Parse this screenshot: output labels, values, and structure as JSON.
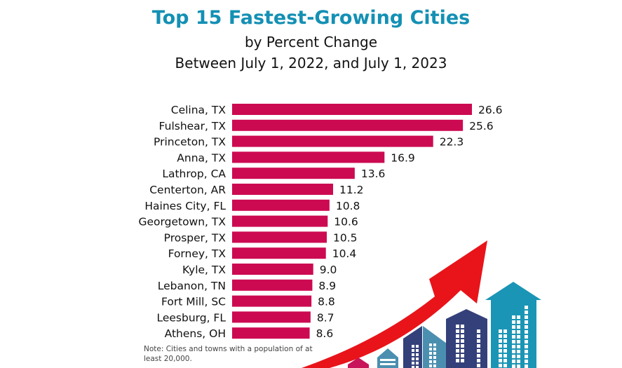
{
  "chart_data": {
    "type": "bar",
    "orientation": "horizontal",
    "title": "Top 15 Fastest-Growing Cities",
    "subtitle_lines": [
      "by Percent Change",
      "Between July 1, 2022, and July 1, 2023"
    ],
    "xlabel": "",
    "ylabel": "",
    "categories": [
      "Celina, TX",
      "Fulshear, TX",
      "Princeton, TX",
      "Anna, TX",
      "Lathrop, CA",
      "Centerton, AR",
      "Haines City, FL",
      "Georgetown, TX",
      "Prosper, TX",
      "Forney, TX",
      "Kyle, TX",
      "Lebanon, TN",
      "Fort Mill, SC",
      "Leesburg, FL",
      "Athens, OH"
    ],
    "values": [
      26.6,
      25.6,
      22.3,
      16.9,
      13.6,
      11.2,
      10.8,
      10.6,
      10.5,
      10.4,
      9.0,
      8.9,
      8.8,
      8.7,
      8.6
    ],
    "value_labels": [
      "26.6",
      "25.6",
      "22.3",
      "16.9",
      "13.6",
      "11.2",
      "10.8",
      "10.6",
      "10.5",
      "10.4",
      "9.0",
      "8.9",
      "8.8",
      "8.7",
      "8.6"
    ],
    "xlim": [
      0,
      26.6
    ],
    "grid": false,
    "legend": "none",
    "bar_color": "#cc0a52",
    "note": "Note: Cities and towns with a population of at least 20,000."
  },
  "colors": {
    "title": "#1490b4",
    "arrow": "#e8141a",
    "building_navy": "#34407a",
    "building_steel": "#4a8fb0",
    "building_teal": "#1a95b5",
    "building_magenta": "#c8145a"
  },
  "illustration": {
    "arrow_icon": "growth-arrow",
    "buildings_icon": "city-buildings"
  }
}
